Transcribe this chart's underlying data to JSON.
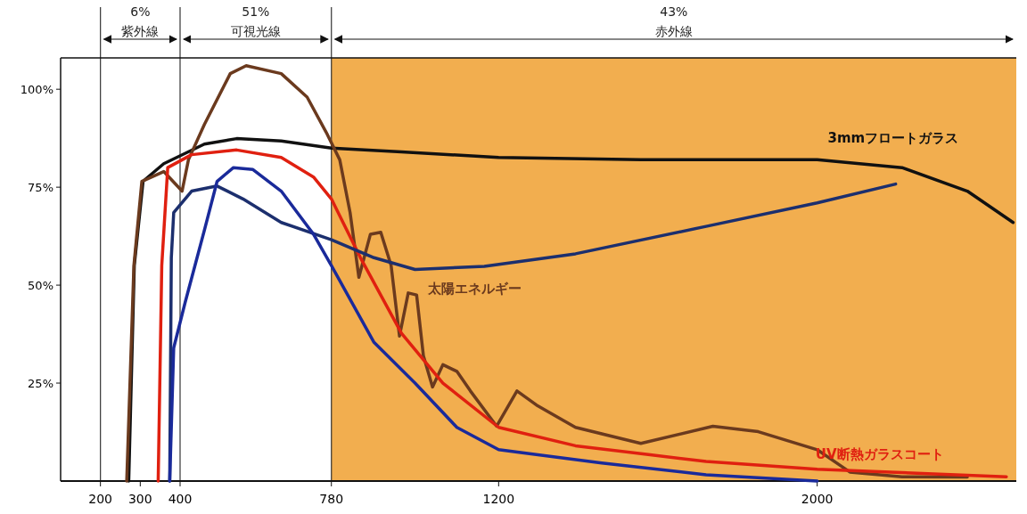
{
  "chart_data": {
    "type": "line",
    "xlim": [
      100,
      2500
    ],
    "ylim": [
      0,
      108
    ],
    "xticks": [
      200,
      300,
      400,
      780,
      1200,
      2000
    ],
    "yticks": [
      {
        "value": 25,
        "label": "25%"
      },
      {
        "value": 50,
        "label": "50%"
      },
      {
        "value": 75,
        "label": "75%"
      },
      {
        "value": 100,
        "label": "100%"
      }
    ],
    "grid": false,
    "marker": "none",
    "line_style": "solid",
    "bands": [
      {
        "axis": "x",
        "from": 780,
        "to": 2500,
        "label": "43%\n赤外線",
        "color": "#f0a030"
      }
    ],
    "ref_lines": [
      {
        "axis": "x",
        "value": 200
      },
      {
        "axis": "x",
        "value": 400
      },
      {
        "axis": "x",
        "value": 780
      }
    ],
    "series": [
      {
        "name": "3mmフロートガラス",
        "color": "#111111",
        "x": [
          271,
          285,
          307,
          359,
          461,
          542,
          654,
          780,
          956,
          1200,
          1557,
          2000,
          2213,
          2377,
          2492
        ],
        "values": [
          0,
          55,
          76.5,
          81,
          86,
          87.4,
          86.8,
          85,
          84,
          82.6,
          82,
          82,
          80,
          74,
          66
        ]
      },
      {
        "name": "太陽エネルギー",
        "color": "#6b3a1e",
        "x": [
          266,
          284,
          304,
          359,
          405,
          421,
          461,
          526,
          566,
          654,
          719,
          767,
          801,
          827,
          849,
          878,
          904,
          930,
          951,
          973,
          994,
          1011,
          1034,
          1060,
          1095,
          1129,
          1195,
          1246,
          1295,
          1393,
          1557,
          1738,
          1852,
          2000,
          2082,
          2213,
          2377
        ],
        "values": [
          0,
          55,
          76.5,
          79,
          74,
          82,
          91,
          104,
          106,
          104,
          98,
          89,
          82,
          68.5,
          52,
          63,
          63.5,
          55,
          37,
          48,
          47.5,
          32,
          24,
          29.7,
          28,
          23,
          14,
          23,
          19.4,
          13.7,
          9.6,
          14,
          12.6,
          8,
          2.3,
          1.1,
          1
        ]
      },
      {
        "name": "UV断熱ガラスコート",
        "color": "#e02010",
        "x": [
          345,
          354,
          369,
          429,
          542,
          654,
          735,
          780,
          853,
          956,
          1060,
          1200,
          1393,
          1721,
          2000,
          2475
        ],
        "values": [
          0,
          55,
          80,
          83.3,
          84.5,
          82.6,
          77.6,
          72,
          57,
          37.7,
          25,
          13.7,
          9,
          5,
          3,
          1.1
        ]
      },
      {
        "color": "#1c2f6e",
        "x": [
          374,
          378,
          384,
          429,
          493,
          558,
          654,
          780,
          887,
          990,
          1164,
          1393,
          1721,
          2000,
          2197
        ],
        "values": [
          0,
          57,
          68.5,
          74,
          75.3,
          72,
          66,
          61.6,
          57,
          54,
          54.8,
          58,
          65,
          71,
          75.8
        ]
      },
      {
        "color": "#1a2a9a",
        "x": [
          374,
          384,
          413,
          461,
          493,
          534,
          583,
          654,
          735,
          780,
          887,
          990,
          1095,
          1200,
          1459,
          1721,
          2000
        ],
        "values": [
          0,
          34,
          45.7,
          64,
          76.5,
          80,
          79.5,
          74,
          63,
          55,
          35.4,
          25,
          13.7,
          8,
          4.6,
          1.6,
          0
        ]
      }
    ],
    "annotations": [
      "6%\n紫外線",
      "51%\n可視光線"
    ]
  }
}
